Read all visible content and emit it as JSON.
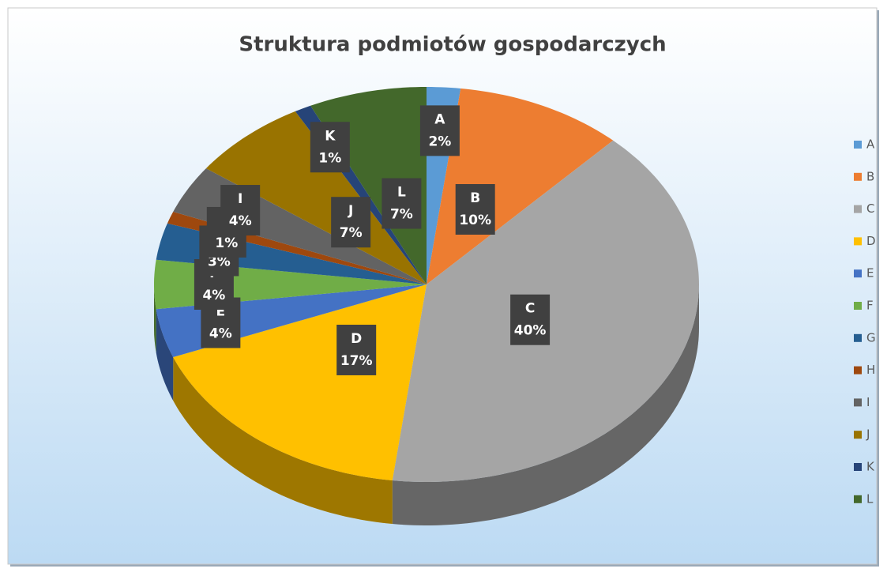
{
  "chart_data": {
    "type": "pie",
    "title": "Struktura podmiotów gospodarczych",
    "categories": [
      "A",
      "B",
      "C",
      "D",
      "E",
      "F",
      "G",
      "H",
      "I",
      "J",
      "K",
      "L"
    ],
    "values": [
      2,
      10,
      40,
      17,
      4,
      4,
      3,
      1,
      4,
      7,
      1,
      7
    ],
    "value_labels": [
      "2%",
      "10%",
      "40%",
      "17%",
      "4%",
      "4%",
      "3%",
      "1%",
      "4%",
      "7%",
      "1%",
      "7%"
    ],
    "colors": [
      "#5b9bd5",
      "#ed7d31",
      "#a5a5a5",
      "#ffc000",
      "#4472c4",
      "#70ad47",
      "#255e91",
      "#9e480e",
      "#636363",
      "#997300",
      "#264478",
      "#43682b"
    ],
    "legend": "right"
  }
}
